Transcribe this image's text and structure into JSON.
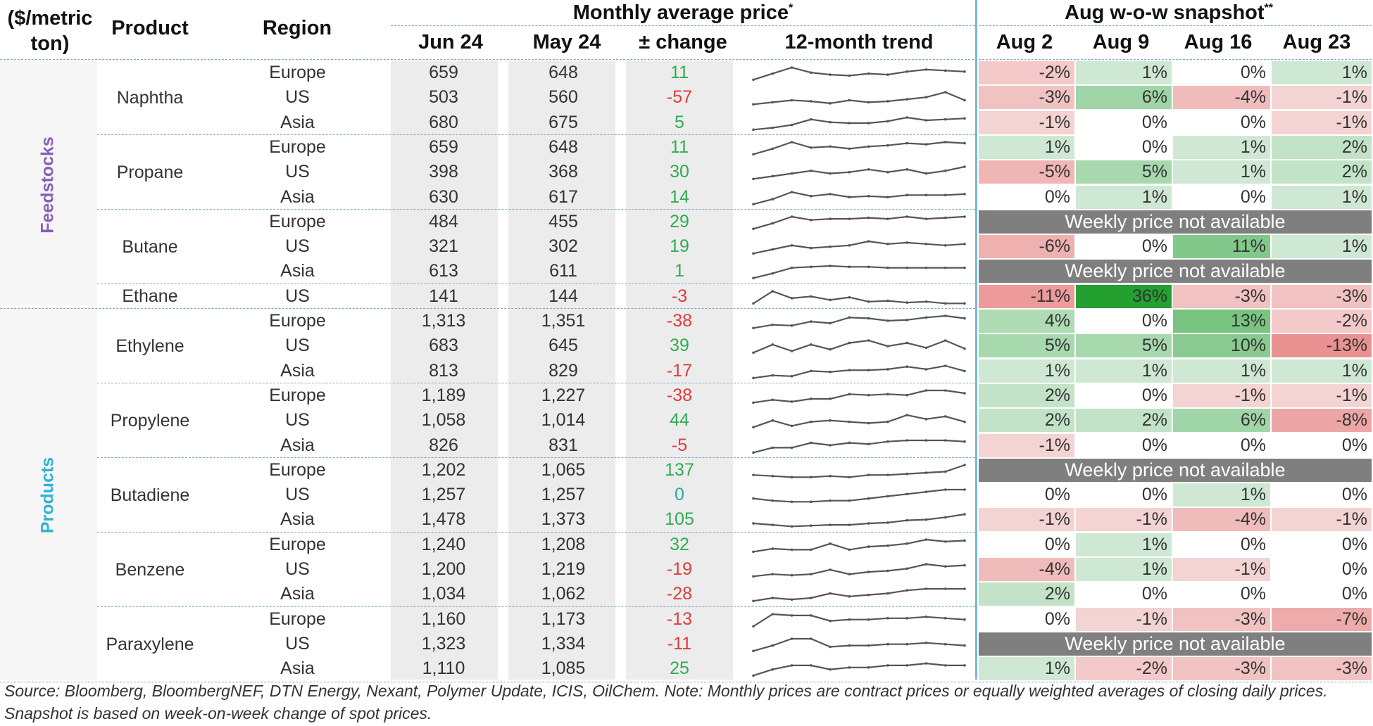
{
  "header": {
    "unit": "($/metric ton)",
    "product": "Product",
    "region": "Region",
    "monthly_title": "Monthly average price",
    "monthly_title_mark": "*",
    "snapshot_title": "Aug w-o-w snapshot",
    "snapshot_title_mark": "**",
    "col_jun": "Jun 24",
    "col_may": "May 24",
    "col_change": "± change",
    "col_trend": "12-month trend",
    "weeks": [
      "Aug 2",
      "Aug 9",
      "Aug 16",
      "Aug 23"
    ]
  },
  "colors": {
    "positive_text": "#2eae4e",
    "negative_text": "#e03c3c",
    "zero_text": "#2aa8a0",
    "feedstocks": "#8a5fb5",
    "products": "#2fb3d6",
    "na_bar": "#7f7f7f",
    "sparkline": "#555555"
  },
  "categories": [
    {
      "name": "Feedstocks",
      "color": "#8a5fb5"
    },
    {
      "name": "Products",
      "color": "#2fb3d6"
    }
  ],
  "na_label": "Weekly price not available",
  "groups": [
    {
      "product": "Naphtha",
      "rows": [
        {
          "region": "Europe",
          "jun": "659",
          "may": "648",
          "change": "11",
          "snapshot": [
            "-2%",
            "1%",
            "0%",
            "1%"
          ],
          "trend": [
            40,
            46,
            52,
            47,
            45,
            44,
            46,
            45,
            48,
            50,
            49,
            48
          ]
        },
        {
          "region": "US",
          "jun": "503",
          "may": "560",
          "change": "-57",
          "snapshot": [
            "-3%",
            "6%",
            "-4%",
            "-1%"
          ],
          "trend": [
            40,
            42,
            44,
            43,
            41,
            44,
            42,
            43,
            45,
            47,
            52,
            44
          ]
        },
        {
          "region": "Asia",
          "jun": "680",
          "may": "675",
          "change": "5",
          "snapshot": [
            "-1%",
            "0%",
            "0%",
            "-1%"
          ],
          "trend": [
            40,
            42,
            45,
            51,
            48,
            47,
            47,
            49,
            53,
            50,
            51,
            52
          ]
        }
      ]
    },
    {
      "product": "Propane",
      "rows": [
        {
          "region": "Europe",
          "jun": "659",
          "may": "648",
          "change": "11",
          "snapshot": [
            "1%",
            "0%",
            "1%",
            "2%"
          ],
          "trend": [
            40,
            45,
            51,
            46,
            47,
            45,
            47,
            48,
            50,
            49,
            51,
            50
          ]
        },
        {
          "region": "US",
          "jun": "398",
          "may": "368",
          "change": "30",
          "snapshot": [
            "-5%",
            "5%",
            "1%",
            "2%"
          ],
          "trend": [
            40,
            42,
            44,
            46,
            44,
            45,
            47,
            45,
            47,
            44,
            46,
            49
          ]
        },
        {
          "region": "Asia",
          "jun": "630",
          "may": "617",
          "change": "14",
          "snapshot": [
            "0%",
            "1%",
            "0%",
            "1%"
          ],
          "trend": [
            40,
            45,
            52,
            48,
            50,
            47,
            48,
            47,
            49,
            49,
            49,
            50
          ]
        }
      ]
    },
    {
      "product": "Butane",
      "rows": [
        {
          "region": "Europe",
          "jun": "484",
          "may": "455",
          "change": "29",
          "snapshot": null,
          "trend": [
            40,
            45,
            51,
            48,
            49,
            49,
            50,
            49,
            51,
            49,
            50,
            51
          ]
        },
        {
          "region": "US",
          "jun": "321",
          "may": "302",
          "change": "19",
          "snapshot": [
            "-6%",
            "0%",
            "11%",
            "1%"
          ],
          "trend": [
            40,
            43,
            46,
            44,
            45,
            46,
            49,
            47,
            48,
            47,
            46,
            47
          ]
        },
        {
          "region": "Asia",
          "jun": "613",
          "may": "611",
          "change": "1",
          "snapshot": null,
          "trend": [
            40,
            45,
            51,
            52,
            53,
            52,
            52,
            51,
            51,
            51,
            51,
            51
          ]
        }
      ]
    },
    {
      "product": "Ethane",
      "rows": [
        {
          "region": "US",
          "jun": "141",
          "may": "144",
          "change": "-3",
          "snapshot": [
            "-11%",
            "36%",
            "-3%",
            "-3%"
          ],
          "trend": [
            40,
            54,
            46,
            48,
            44,
            47,
            42,
            43,
            41,
            42,
            40,
            40
          ]
        }
      ]
    },
    {
      "product": "Ethylene",
      "rows": [
        {
          "region": "Europe",
          "jun": "1,313",
          "may": "1,351",
          "change": "-38",
          "snapshot": [
            "4%",
            "0%",
            "13%",
            "-2%"
          ],
          "trend": [
            40,
            44,
            43,
            48,
            46,
            53,
            52,
            49,
            50,
            53,
            55,
            52
          ]
        },
        {
          "region": "US",
          "jun": "683",
          "may": "645",
          "change": "39",
          "snapshot": [
            "5%",
            "5%",
            "10%",
            "-13%"
          ],
          "trend": [
            40,
            50,
            42,
            50,
            44,
            52,
            55,
            48,
            52,
            46,
            55,
            45
          ]
        },
        {
          "region": "Asia",
          "jun": "813",
          "may": "829",
          "change": "-17",
          "snapshot": [
            "1%",
            "1%",
            "1%",
            "1%"
          ],
          "trend": [
            40,
            43,
            42,
            48,
            47,
            49,
            49,
            50,
            53,
            50,
            54,
            48
          ]
        }
      ]
    },
    {
      "product": "Propylene",
      "rows": [
        {
          "region": "Europe",
          "jun": "1,189",
          "may": "1,227",
          "change": "-38",
          "snapshot": [
            "2%",
            "0%",
            "-1%",
            "-1%"
          ],
          "trend": [
            40,
            43,
            41,
            44,
            44,
            49,
            48,
            49,
            48,
            53,
            53,
            50
          ]
        },
        {
          "region": "US",
          "jun": "1,058",
          "may": "1,014",
          "change": "44",
          "snapshot": [
            "2%",
            "2%",
            "6%",
            "-8%"
          ],
          "trend": [
            40,
            45,
            41,
            44,
            45,
            44,
            43,
            44,
            49,
            46,
            48,
            44
          ]
        },
        {
          "region": "Asia",
          "jun": "826",
          "may": "831",
          "change": "-5",
          "snapshot": [
            "-1%",
            "0%",
            "0%",
            "0%"
          ],
          "trend": [
            40,
            44,
            44,
            48,
            46,
            48,
            47,
            49,
            50,
            50,
            50,
            49
          ]
        }
      ]
    },
    {
      "product": "Butadiene",
      "rows": [
        {
          "region": "Europe",
          "jun": "1,202",
          "may": "1,065",
          "change": "137",
          "snapshot": null,
          "trend": [
            40,
            39,
            38,
            38,
            39,
            38,
            40,
            40,
            41,
            42,
            43,
            49
          ]
        },
        {
          "region": "US",
          "jun": "1,257",
          "may": "1,257",
          "change": "0",
          "snapshot": [
            "0%",
            "0%",
            "1%",
            "0%"
          ],
          "trend": [
            40,
            38,
            37,
            37,
            38,
            38,
            40,
            42,
            44,
            46,
            48,
            48
          ]
        },
        {
          "region": "Asia",
          "jun": "1,478",
          "may": "1,373",
          "change": "105",
          "snapshot": [
            "-1%",
            "-1%",
            "-4%",
            "-1%"
          ],
          "trend": [
            40,
            38,
            36,
            37,
            38,
            38,
            40,
            41,
            44,
            45,
            48,
            52
          ]
        }
      ]
    },
    {
      "product": "Benzene",
      "rows": [
        {
          "region": "Europe",
          "jun": "1,240",
          "may": "1,208",
          "change": "32",
          "snapshot": [
            "0%",
            "1%",
            "0%",
            "0%"
          ],
          "trend": [
            40,
            43,
            42,
            42,
            48,
            42,
            45,
            46,
            48,
            52,
            50,
            51
          ]
        },
        {
          "region": "US",
          "jun": "1,200",
          "may": "1,219",
          "change": "-19",
          "snapshot": [
            "-4%",
            "1%",
            "-1%",
            "0%"
          ],
          "trend": [
            40,
            42,
            41,
            42,
            46,
            42,
            44,
            45,
            47,
            51,
            49,
            50
          ]
        },
        {
          "region": "Asia",
          "jun": "1,034",
          "may": "1,062",
          "change": "-28",
          "snapshot": [
            "2%",
            "0%",
            "0%",
            "0%"
          ],
          "trend": [
            40,
            42,
            41,
            42,
            45,
            43,
            44,
            45,
            47,
            48,
            48,
            48
          ]
        }
      ]
    },
    {
      "product": "Paraxylene",
      "rows": [
        {
          "region": "Europe",
          "jun": "1,160",
          "may": "1,173",
          "change": "-13",
          "snapshot": [
            "0%",
            "-1%",
            "-3%",
            "-7%"
          ],
          "trend": [
            40,
            49,
            48,
            48,
            44,
            45,
            45,
            46,
            46,
            47,
            46,
            45
          ]
        },
        {
          "region": "US",
          "jun": "1,323",
          "may": "1,334",
          "change": "-11",
          "snapshot": null,
          "trend": [
            40,
            44,
            49,
            49,
            43,
            44,
            44,
            45,
            45,
            46,
            45,
            44
          ]
        },
        {
          "region": "Asia",
          "jun": "1,110",
          "may": "1,085",
          "change": "25",
          "snapshot": [
            "1%",
            "-2%",
            "-3%",
            "-3%"
          ],
          "trend": [
            40,
            43,
            45,
            45,
            43,
            44,
            44,
            45,
            45,
            46,
            45,
            45
          ]
        }
      ]
    }
  ],
  "footer": "Source: Bloomberg, BloombergNEF, DTN Energy, Nexant, Polymer Update, ICIS, OilChem. Note: Monthly prices are contract prices or equally weighted averages of closing daily prices. Snapshot is based on week-on-week change of spot prices."
}
